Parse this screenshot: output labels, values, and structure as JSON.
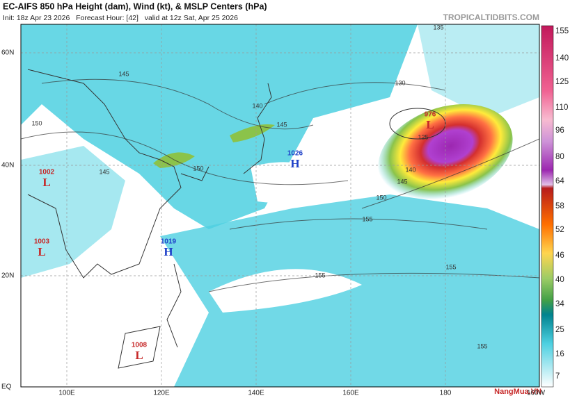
{
  "header": {
    "title": "EC-AIFS 850 hPa Height (dam), Wind (kt), & MSLP Centers (hPa)",
    "subtitle": "Init: 18z Apr 23 2026   Forecast Hour: [42]   valid at 12z Sat, Apr 25 2026",
    "source": "TROPICALTIDBITS.COM"
  },
  "map": {
    "lat_labels": [
      "60N",
      "40N",
      "20N",
      "EQ"
    ],
    "lon_labels": [
      "100E",
      "120E",
      "140E",
      "160E",
      "180",
      "160W"
    ],
    "centers": [
      {
        "type": "L",
        "pressure": 1002
      },
      {
        "type": "L",
        "pressure": 1003
      },
      {
        "type": "H",
        "pressure": 1019
      },
      {
        "type": "H",
        "pressure": 1026
      },
      {
        "type": "L",
        "pressure": 976
      },
      {
        "type": "L",
        "pressure": 1008
      }
    ],
    "contour_labels": [
      "145",
      "150",
      "140",
      "145",
      "135",
      "130",
      "155",
      "155",
      "155",
      "155",
      "150",
      "145",
      "140",
      "125",
      "145",
      "150"
    ]
  },
  "colorbar": {
    "labels": [
      155,
      140,
      125,
      110,
      96,
      80,
      64,
      58,
      52,
      46,
      40,
      34,
      25,
      16,
      7
    ]
  },
  "watermark": "NangMua.VN"
}
